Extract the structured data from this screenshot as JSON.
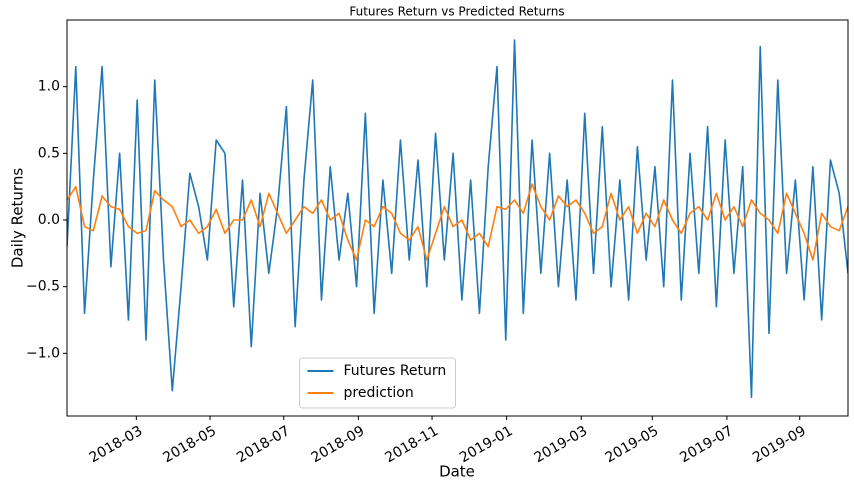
{
  "chart_data": {
    "type": "line",
    "title": "Futures Return vs Predicted Returns",
    "xlabel": "Date",
    "ylabel": "Daily Returns",
    "categories": [
      null,
      null,
      null,
      null,
      null,
      null,
      null,
      null,
      null,
      null,
      null,
      null,
      null,
      null,
      null,
      null,
      null,
      null,
      null,
      null,
      null,
      null,
      null,
      null,
      null,
      null,
      null,
      null,
      null,
      null,
      null,
      null,
      null,
      null,
      null,
      null,
      null,
      null,
      null,
      null,
      null,
      null,
      null,
      null,
      null,
      null,
      null,
      null,
      null,
      null,
      null,
      null,
      null,
      null,
      null,
      null,
      null,
      null,
      null,
      null,
      null,
      null,
      null,
      null,
      null,
      null,
      null,
      null,
      null,
      null,
      null,
      null,
      null,
      null,
      null,
      null,
      null,
      null,
      null,
      null,
      null,
      null,
      null,
      null,
      null,
      null,
      null,
      null,
      null,
      null
    ],
    "xlim": [
      0,
      89
    ],
    "xticks": [
      {
        "value": 7.9,
        "label": "2018-03"
      },
      {
        "value": 16.3,
        "label": "2018-05"
      },
      {
        "value": 24.7,
        "label": "2018-07"
      },
      {
        "value": 33.2,
        "label": "2018-09"
      },
      {
        "value": 41.6,
        "label": "2018-11"
      },
      {
        "value": 50.1,
        "label": "2019-01"
      },
      {
        "value": 58.6,
        "label": "2019-03"
      },
      {
        "value": 66.7,
        "label": "2019-05"
      },
      {
        "value": 75.2,
        "label": "2019-07"
      },
      {
        "value": 83.5,
        "label": "2019-09"
      }
    ],
    "ylim": [
      -1.47,
      1.5
    ],
    "yticks": [
      {
        "value": -1.0,
        "label": "−1.0"
      },
      {
        "value": -0.5,
        "label": "−0.5"
      },
      {
        "value": 0.0,
        "label": "0.0"
      },
      0.5,
      {
        "value": 1.0,
        "label": "1.0"
      }
    ],
    "legend": "lower center",
    "series": [
      {
        "name": "Futures Return",
        "color": "#1f77b4",
        "values": [
          -0.2,
          1.15,
          -0.7,
          0.3,
          1.15,
          -0.35,
          0.5,
          -0.75,
          0.9,
          -0.9,
          1.05,
          -0.3,
          -1.28,
          -0.5,
          0.35,
          0.1,
          -0.3,
          0.6,
          0.5,
          -0.65,
          0.3,
          -0.95,
          0.2,
          -0.4,
          0.1,
          0.85,
          -0.8,
          0.3,
          1.05,
          -0.6,
          0.4,
          -0.3,
          0.2,
          -0.5,
          0.8,
          -0.7,
          0.3,
          -0.4,
          0.6,
          -0.3,
          0.45,
          -0.5,
          0.65,
          -0.3,
          0.5,
          -0.6,
          0.3,
          -0.7,
          0.4,
          1.15,
          -0.9,
          1.35,
          -0.7,
          0.6,
          -0.4,
          0.5,
          -0.5,
          0.3,
          -0.6,
          0.8,
          -0.4,
          0.7,
          -0.5,
          0.3,
          -0.6,
          0.55,
          -0.3,
          0.4,
          -0.5,
          1.05,
          -0.6,
          0.5,
          -0.4,
          0.7,
          -0.65,
          0.6,
          -0.4,
          0.4,
          -1.33,
          1.3,
          -0.85,
          1.05,
          -0.4,
          0.3,
          -0.6,
          0.4,
          -0.75,
          0.45,
          0.2,
          -0.4
        ]
      },
      {
        "name": "prediction",
        "color": "#ff7f0e",
        "values": [
          0.15,
          0.25,
          -0.05,
          -0.08,
          0.18,
          0.1,
          0.08,
          -0.05,
          -0.1,
          -0.08,
          0.22,
          0.15,
          0.1,
          -0.05,
          0.0,
          -0.1,
          -0.05,
          0.08,
          -0.1,
          0.0,
          0.0,
          0.15,
          -0.05,
          0.2,
          0.05,
          -0.1,
          0.0,
          0.1,
          0.05,
          0.15,
          0.0,
          0.05,
          -0.15,
          -0.3,
          0.0,
          -0.05,
          0.1,
          0.05,
          -0.1,
          -0.15,
          -0.05,
          -0.3,
          -0.1,
          0.1,
          -0.05,
          0.0,
          -0.15,
          -0.1,
          -0.2,
          0.1,
          0.08,
          0.15,
          0.05,
          0.27,
          0.1,
          0.0,
          0.18,
          0.1,
          0.15,
          0.05,
          -0.1,
          -0.05,
          0.2,
          0.0,
          0.1,
          -0.1,
          0.05,
          -0.05,
          0.15,
          0.0,
          -0.1,
          0.05,
          0.1,
          0.0,
          0.2,
          0.0,
          0.1,
          -0.05,
          0.15,
          0.05,
          0.0,
          -0.1,
          0.2,
          0.05,
          -0.1,
          -0.3,
          0.05,
          -0.05,
          -0.08,
          0.1
        ]
      }
    ]
  }
}
